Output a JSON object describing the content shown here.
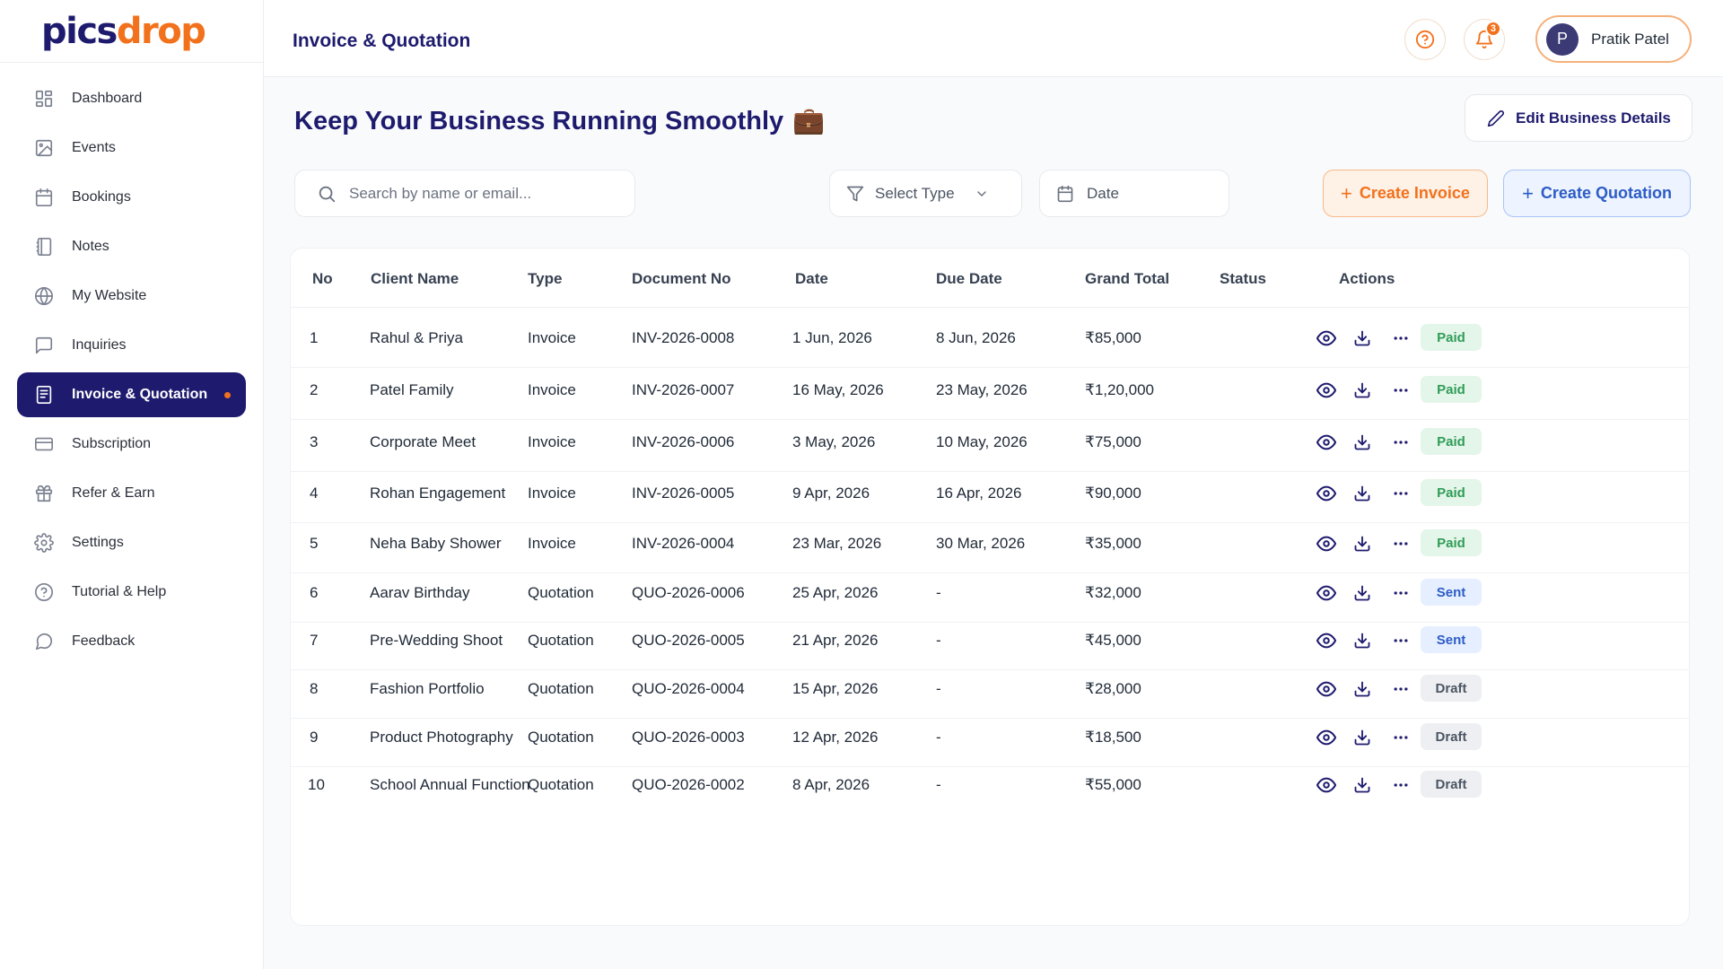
{
  "brand": {
    "logo_part1": "pics",
    "logo_part2": "drop",
    "accent": "#f2711c",
    "primary": "#1e1b6e"
  },
  "sidebar": {
    "items": [
      {
        "label": "Dashboard",
        "icon": "dashboard-icon"
      },
      {
        "label": "Events",
        "icon": "image-icon"
      },
      {
        "label": "Bookings",
        "icon": "calendar-icon"
      },
      {
        "label": "Notes",
        "icon": "notebook-icon"
      },
      {
        "label": "My Website",
        "icon": "globe-icon"
      },
      {
        "label": "Inquiries",
        "icon": "message-square-icon"
      },
      {
        "label": "Invoice & Quotation",
        "icon": "document-icon",
        "active": true
      },
      {
        "label": "Subscription",
        "icon": "credit-card-icon"
      },
      {
        "label": "Refer & Earn",
        "icon": "gift-icon"
      },
      {
        "label": "Settings",
        "icon": "gear-icon"
      },
      {
        "label": "Tutorial & Help",
        "icon": "help-circle-icon"
      },
      {
        "label": "Feedback",
        "icon": "chat-bubble-icon"
      }
    ]
  },
  "header": {
    "title": "Invoice & Quotation",
    "notification_count": "3",
    "user": {
      "initial": "P",
      "name": "Pratik Patel"
    }
  },
  "main": {
    "heading": "Keep Your Business Running Smoothly",
    "heading_emoji": "💼",
    "edit_button": "Edit Business Details",
    "search_placeholder": "Search by name or email...",
    "select_type": "Select Type",
    "date_filter": "Date",
    "create_invoice": "Create Invoice",
    "create_quotation": "Create Quotation"
  },
  "table": {
    "columns": [
      "No",
      "Client Name",
      "Type",
      "Document No",
      "Date",
      "Due Date",
      "Grand Total",
      "Status",
      "Actions"
    ],
    "rows": [
      {
        "no": "1",
        "client": "Rahul & Priya",
        "type": "Invoice",
        "doc": "INV-2026-0008",
        "date": "1 Jun, 2026",
        "due": "8 Jun, 2026",
        "total": "₹85,000",
        "status": "Paid"
      },
      {
        "no": "2",
        "client": "Patel Family",
        "type": "Invoice",
        "doc": "INV-2026-0007",
        "date": "16 May, 2026",
        "due": "23 May, 2026",
        "total": "₹1,20,000",
        "status": "Paid"
      },
      {
        "no": "3",
        "client": "Corporate Meet",
        "type": "Invoice",
        "doc": "INV-2026-0006",
        "date": "3 May, 2026",
        "due": "10 May, 2026",
        "total": "₹75,000",
        "status": "Paid"
      },
      {
        "no": "4",
        "client": "Rohan Engagement",
        "type": "Invoice",
        "doc": "INV-2026-0005",
        "date": "9 Apr, 2026",
        "due": "16 Apr, 2026",
        "total": "₹90,000",
        "status": "Paid"
      },
      {
        "no": "5",
        "client": "Neha Baby Shower",
        "type": "Invoice",
        "doc": "INV-2026-0004",
        "date": "23 Mar, 2026",
        "due": "30 Mar, 2026",
        "total": "₹35,000",
        "status": "Paid"
      },
      {
        "no": "6",
        "client": "Aarav Birthday",
        "type": "Quotation",
        "doc": "QUO-2026-0006",
        "date": "25 Apr, 2026",
        "due": "-",
        "total": "₹32,000",
        "status": "Sent"
      },
      {
        "no": "7",
        "client": "Pre-Wedding Shoot",
        "type": "Quotation",
        "doc": "QUO-2026-0005",
        "date": "21 Apr, 2026",
        "due": "-",
        "total": "₹45,000",
        "status": "Sent"
      },
      {
        "no": "8",
        "client": "Fashion Portfolio",
        "type": "Quotation",
        "doc": "QUO-2026-0004",
        "date": "15 Apr, 2026",
        "due": "-",
        "total": "₹28,000",
        "status": "Draft"
      },
      {
        "no": "9",
        "client": "Product Photography",
        "type": "Quotation",
        "doc": "QUO-2026-0003",
        "date": "12 Apr, 2026",
        "due": "-",
        "total": "₹18,500",
        "status": "Draft"
      },
      {
        "no": "10",
        "client": "School Annual Function",
        "type": "Quotation",
        "doc": "QUO-2026-0002",
        "date": "8 Apr, 2026",
        "due": "-",
        "total": "₹55,000",
        "status": "Draft"
      }
    ]
  }
}
